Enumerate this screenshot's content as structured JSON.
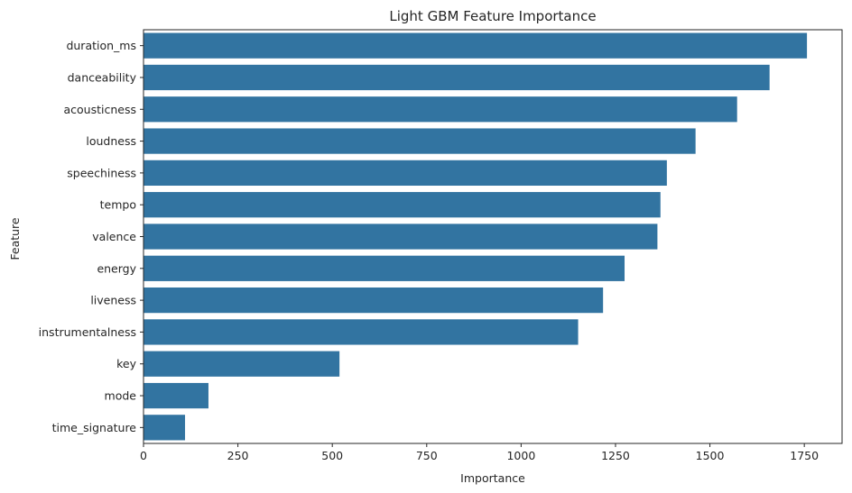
{
  "chart_data": {
    "type": "bar",
    "orientation": "horizontal",
    "title": "Light GBM Feature Importance",
    "xlabel": "Importance",
    "ylabel": "Feature",
    "categories": [
      "duration_ms",
      "danceability",
      "acousticness",
      "loudness",
      "speechiness",
      "tempo",
      "valence",
      "energy",
      "liveness",
      "instrumentalness",
      "key",
      "mode",
      "time_signature"
    ],
    "values": [
      1757,
      1658,
      1572,
      1462,
      1386,
      1369,
      1361,
      1274,
      1217,
      1151,
      519,
      172,
      110
    ],
    "xlim": [
      0,
      1850
    ],
    "xticks": [
      0,
      250,
      500,
      750,
      1000,
      1250,
      1500,
      1750
    ],
    "bar_color": "#3274a1",
    "grid": false
  }
}
